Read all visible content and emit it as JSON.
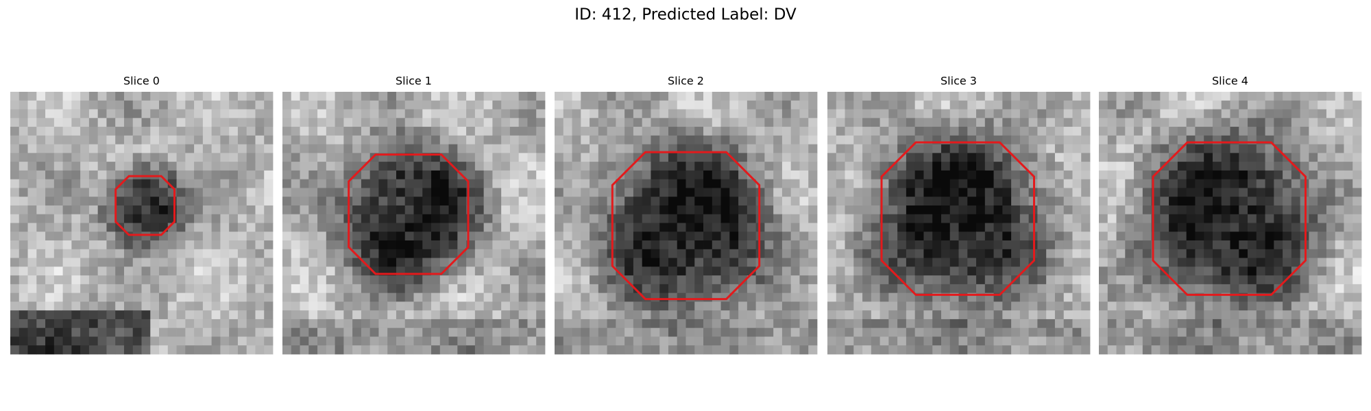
{
  "header": {
    "title": "ID: 412, Predicted Label: DV"
  },
  "panels": [
    {
      "title": "Slice 0"
    },
    {
      "title": "Slice 1"
    },
    {
      "title": "Slice 2"
    },
    {
      "title": "Slice 3"
    },
    {
      "title": "Slice 4"
    }
  ]
}
